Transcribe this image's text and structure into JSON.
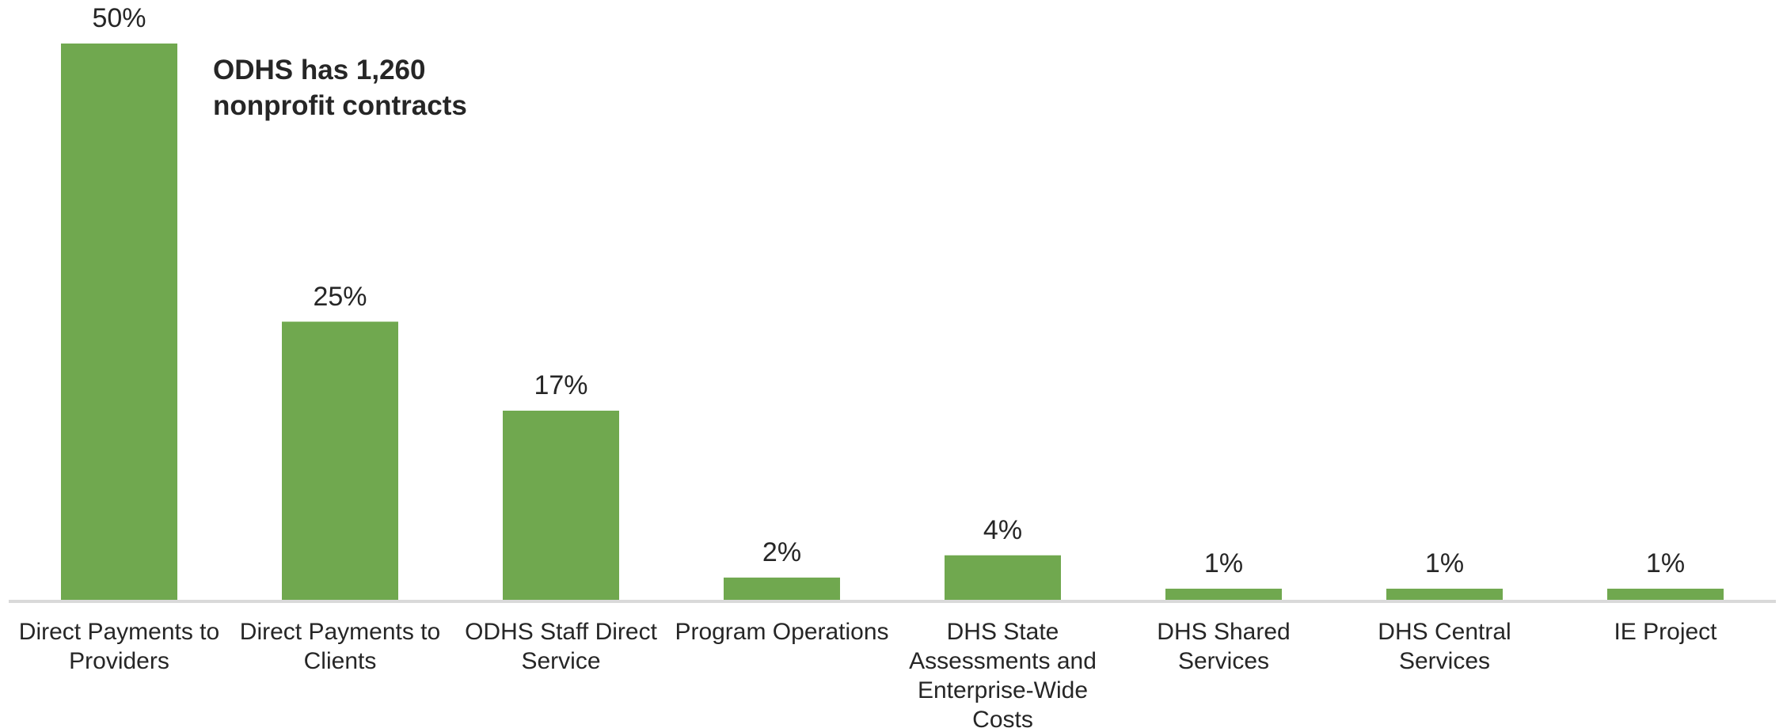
{
  "chart_data": {
    "type": "bar",
    "annotation": "ODHS has 1,260 nonprofit contracts",
    "categories": [
      "Direct Payments to Providers",
      "Direct Payments to Clients",
      "ODHS Staff Direct Service",
      "Program Operations",
      "DHS State Assessments and Enterprise-Wide Costs",
      "DHS Shared Services",
      "DHS Central Services",
      "IE Project"
    ],
    "values": [
      50,
      25,
      17,
      2,
      4,
      1,
      1,
      1
    ],
    "value_labels": [
      "50%",
      "25%",
      "17%",
      "2%",
      "4%",
      "1%",
      "1%",
      "1%"
    ],
    "color": "#70a84f"
  }
}
